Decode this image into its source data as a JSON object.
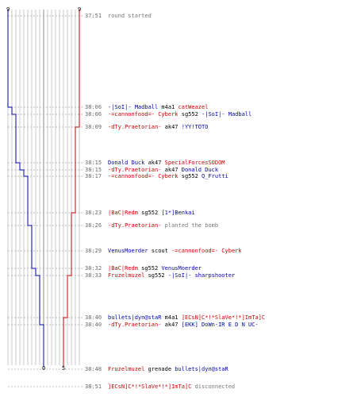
{
  "colors": {
    "ct": "#0000aa",
    "t": "#cc0000",
    "text": "#000000",
    "note": "#777777",
    "time": "#6a6a6a"
  },
  "axis": {
    "top_left": "9",
    "top_right": "9",
    "bottom_left": "0",
    "bottom_right": "5"
  },
  "ct_alive": [
    9,
    8,
    7,
    7,
    6,
    5,
    4,
    4,
    3,
    3,
    2,
    1,
    1,
    0
  ],
  "t_alive": [
    9,
    9,
    9,
    8,
    8,
    8,
    8,
    7,
    7,
    7,
    7,
    6,
    5,
    5
  ],
  "events": [
    {
      "time": "37:51",
      "parts": [
        {
          "text": "round started",
          "cls": "gray"
        }
      ]
    },
    {
      "time": "38:06",
      "parts": [
        {
          "text": "-|SoI|- Madball",
          "cls": "blue"
        },
        {
          "text": " m4a1 ",
          "cls": "blk"
        },
        {
          "text": "catWeazel",
          "cls": "red"
        }
      ]
    },
    {
      "time": "38:06",
      "parts": [
        {
          "text": "-=cannonfood=- Cyberk",
          "cls": "red"
        },
        {
          "text": "  sg552 ",
          "cls": "blk"
        },
        {
          "text": "-|SoI|- Madball",
          "cls": "blue"
        }
      ]
    },
    {
      "time": "38:09",
      "parts": [
        {
          "text": "-dTy.Praetorian-",
          "cls": "red"
        },
        {
          "text": " ak47 ",
          "cls": "blk"
        },
        {
          "text": "!YY!TOTO",
          "cls": "blue"
        }
      ]
    },
    {
      "time": "38:15",
      "parts": [
        {
          "text": "Donald Duck",
          "cls": "blue"
        },
        {
          "text": " ak47 ",
          "cls": "blk"
        },
        {
          "text": "SpecialForcesSODOM",
          "cls": "red"
        }
      ]
    },
    {
      "time": "38:15",
      "parts": [
        {
          "text": "-dTy.Praetorian-",
          "cls": "red"
        },
        {
          "text": " ak47 ",
          "cls": "blk"
        },
        {
          "text": "Donald Duck",
          "cls": "blue"
        }
      ]
    },
    {
      "time": "38:17",
      "parts": [
        {
          "text": "-=cannonfood=- Cyberk",
          "cls": "red"
        },
        {
          "text": "  sg552 ",
          "cls": "blk"
        },
        {
          "text": "Q_Frutti",
          "cls": "blue"
        }
      ]
    },
    {
      "time": "38:23",
      "parts": [
        {
          "text": "|BaC|Redm",
          "cls": "red"
        },
        {
          "text": " sg552 ",
          "cls": "blk"
        },
        {
          "text": "[1*]Benkai",
          "cls": "blue"
        }
      ]
    },
    {
      "time": "38:26",
      "parts": [
        {
          "text": "-dTy.Praetorian-",
          "cls": "red"
        },
        {
          "text": " planted the bomb",
          "cls": "gray"
        }
      ]
    },
    {
      "time": "38:29",
      "parts": [
        {
          "text": "VenusMoerder",
          "cls": "blue"
        },
        {
          "text": " scout ",
          "cls": "blk"
        },
        {
          "text": "-=cannonfood=- Cyberk",
          "cls": "red"
        }
      ]
    },
    {
      "time": "38:32",
      "parts": [
        {
          "text": "|BaC|Redm",
          "cls": "red"
        },
        {
          "text": " sg552 ",
          "cls": "blk"
        },
        {
          "text": "VenusMoerder",
          "cls": "blue"
        }
      ]
    },
    {
      "time": "38:33",
      "parts": [
        {
          "text": "Fruzelmuzel",
          "cls": "red"
        },
        {
          "text": " sg552 ",
          "cls": "blk"
        },
        {
          "text": "-|SoI|- sharpshooter",
          "cls": "blue"
        }
      ]
    },
    {
      "time": "38:40",
      "parts": [
        {
          "text": "bullets|dyn@staR",
          "cls": "blue"
        },
        {
          "text": " m4a1 ",
          "cls": "blk"
        },
        {
          "text": "]ECsN]C*!*SlaVe*!*]ImTa]C",
          "cls": "red"
        }
      ]
    },
    {
      "time": "38:40",
      "parts": [
        {
          "text": "-dTy.Praetorian-",
          "cls": "red"
        },
        {
          "text": " ak47 ",
          "cls": "blk"
        },
        {
          "text": "[EKK] DoWn-IR E D N UC-",
          "cls": "blue"
        }
      ]
    },
    {
      "time": "38:48",
      "parts": [
        {
          "text": "Fruzelmuzel",
          "cls": "red"
        },
        {
          "text": " grenade ",
          "cls": "blk"
        },
        {
          "text": "bullets|dyn@staR",
          "cls": "blue"
        }
      ]
    },
    {
      "time": "38:51",
      "parts": [
        {
          "text": "]ECsN]C*!*SlaVe*!*]ImTa]C",
          "cls": "red"
        },
        {
          "text": " disconnected",
          "cls": "gray"
        }
      ]
    }
  ]
}
